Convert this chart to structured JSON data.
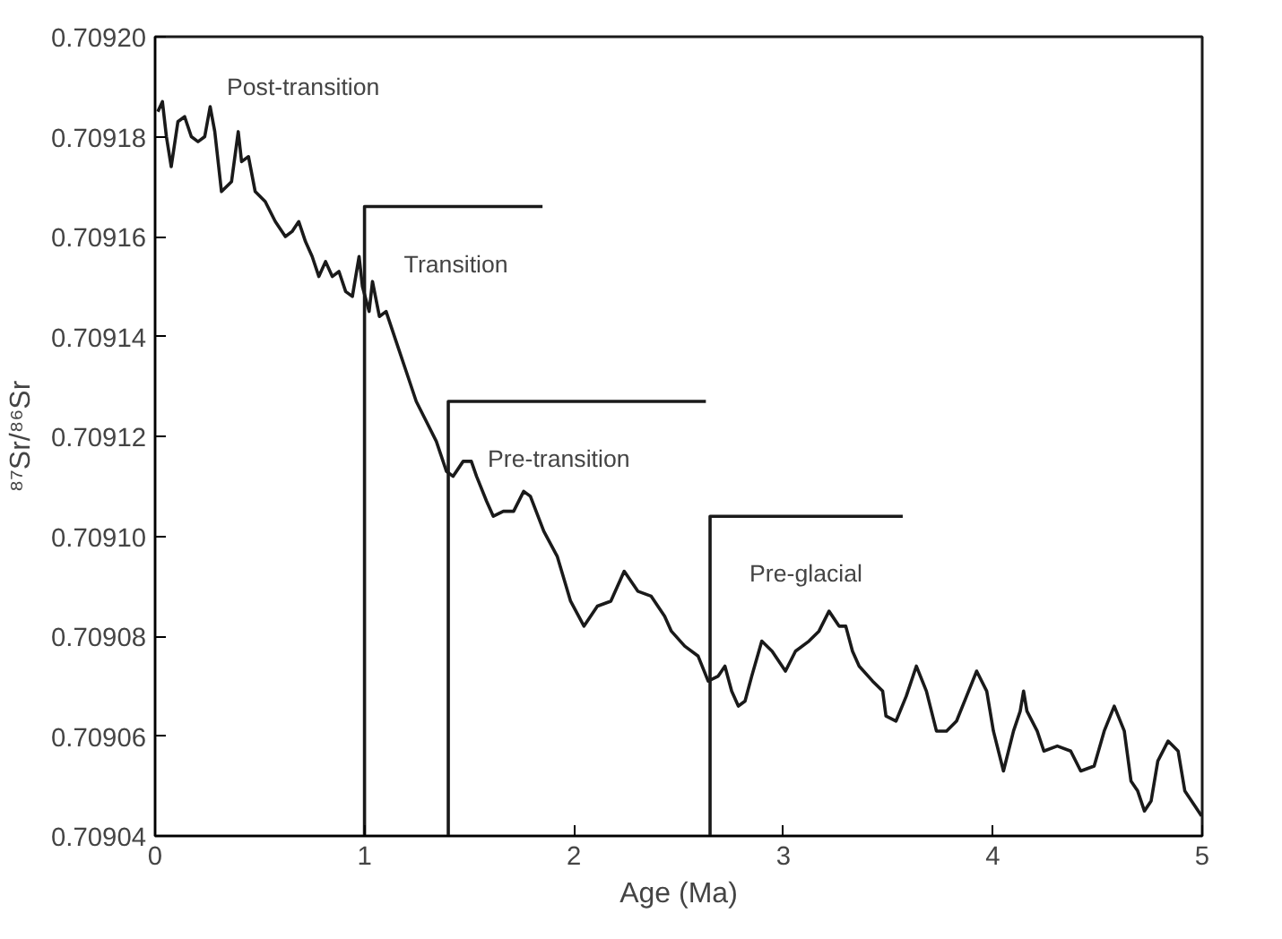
{
  "chart_data": {
    "type": "line",
    "xlabel": "Age (Ma)",
    "ylabel": "⁸⁷Sr/⁸⁶Sr",
    "xlim": [
      0,
      5
    ],
    "xticks": [
      0,
      1,
      2,
      3,
      4,
      5
    ],
    "ylim": [
      0.70904,
      0.7092
    ],
    "yticks": [
      {
        "value": 0.70904,
        "label": "0.70904"
      },
      {
        "value": 0.70906,
        "label": "0.70906"
      },
      {
        "value": 0.70908,
        "label": "0.70908"
      },
      {
        "value": 0.7091,
        "label": "0.70910"
      },
      {
        "value": 0.70912,
        "label": "0.70912"
      },
      {
        "value": 0.70914,
        "label": "0.70914"
      },
      {
        "value": 0.70916,
        "label": "0.70916"
      },
      {
        "value": 0.70918,
        "label": "0.70918"
      },
      {
        "value": 0.7092,
        "label": "0.70920"
      }
    ],
    "grid": false,
    "marker": "none",
    "line_style": "solid",
    "series": [
      {
        "color": "#1a1a1a",
        "x": [
          0.013,
          0.035,
          0.054,
          0.077,
          0.109,
          0.141,
          0.173,
          0.205,
          0.237,
          0.263,
          0.285,
          0.317,
          0.365,
          0.397,
          0.413,
          0.446,
          0.478,
          0.526,
          0.574,
          0.622,
          0.654,
          0.686,
          0.718,
          0.75,
          0.782,
          0.814,
          0.846,
          0.878,
          0.91,
          0.942,
          0.974,
          0.99,
          1.022,
          1.038,
          1.071,
          1.103,
          1.151,
          1.199,
          1.247,
          1.295,
          1.343,
          1.391,
          1.423,
          1.471,
          1.51,
          1.535,
          1.583,
          1.615,
          1.663,
          1.712,
          1.76,
          1.792,
          1.856,
          1.92,
          1.984,
          2.048,
          2.112,
          2.176,
          2.24,
          2.305,
          2.369,
          2.433,
          2.465,
          2.529,
          2.593,
          2.641,
          2.689,
          2.721,
          2.753,
          2.785,
          2.817,
          2.849,
          2.897,
          2.946,
          3.01,
          3.058,
          3.122,
          3.17,
          3.218,
          3.266,
          3.298,
          3.33,
          3.362,
          3.426,
          3.474,
          3.49,
          3.538,
          3.587,
          3.635,
          3.683,
          3.731,
          3.779,
          3.827,
          3.875,
          3.923,
          3.971,
          4.003,
          4.051,
          4.099,
          4.131,
          4.147,
          4.163,
          4.212,
          4.244,
          4.308,
          4.372,
          4.42,
          4.484,
          4.532,
          4.58,
          4.628,
          4.66,
          4.692,
          4.724,
          4.756,
          4.788,
          4.837,
          4.885,
          4.917,
          4.965,
          4.997
        ],
        "values": [
          0.709185,
          0.709187,
          0.70918,
          0.709174,
          0.709183,
          0.709184,
          0.70918,
          0.709179,
          0.70918,
          0.709186,
          0.709181,
          0.709169,
          0.709171,
          0.709181,
          0.709175,
          0.709176,
          0.709169,
          0.709167,
          0.709163,
          0.70916,
          0.709161,
          0.709163,
          0.709159,
          0.709156,
          0.709152,
          0.709155,
          0.709152,
          0.709153,
          0.709149,
          0.709148,
          0.709156,
          0.70915,
          0.709145,
          0.709151,
          0.709144,
          0.709145,
          0.709139,
          0.709133,
          0.709127,
          0.709123,
          0.709119,
          0.709113,
          0.709112,
          0.709115,
          0.709115,
          0.709112,
          0.709107,
          0.709104,
          0.709105,
          0.709105,
          0.709109,
          0.709108,
          0.709101,
          0.709096,
          0.709087,
          0.709082,
          0.709086,
          0.709087,
          0.709093,
          0.709089,
          0.709088,
          0.709084,
          0.709081,
          0.709078,
          0.709076,
          0.709071,
          0.709072,
          0.709074,
          0.709069,
          0.709066,
          0.709067,
          0.709072,
          0.709079,
          0.709077,
          0.709073,
          0.709077,
          0.709079,
          0.709081,
          0.709085,
          0.709082,
          0.709082,
          0.709077,
          0.709074,
          0.709071,
          0.709069,
          0.709064,
          0.709063,
          0.709068,
          0.709074,
          0.709069,
          0.709061,
          0.709061,
          0.709063,
          0.709068,
          0.709073,
          0.709069,
          0.709061,
          0.709053,
          0.709061,
          0.709065,
          0.709069,
          0.709065,
          0.709061,
          0.709057,
          0.709058,
          0.709057,
          0.709053,
          0.709054,
          0.709061,
          0.709066,
          0.709061,
          0.709051,
          0.709049,
          0.709045,
          0.709047,
          0.709055,
          0.709059,
          0.709057,
          0.709049,
          0.709046,
          0.709044
        ]
      },
      {
        "color": "#1a1a1a",
        "x": [
          1.0,
          1.0,
          1.85
        ],
        "values": [
          0.70904,
          0.709166,
          0.709166
        ]
      },
      {
        "color": "#1a1a1a",
        "x": [
          1.4,
          1.4,
          2.63
        ],
        "values": [
          0.70904,
          0.709127,
          0.709127
        ]
      },
      {
        "color": "#1a1a1a",
        "x": [
          2.65,
          2.65,
          3.57
        ],
        "values": [
          0.70904,
          0.709104,
          0.709104
        ]
      }
    ],
    "annotations": [
      "Post-transition",
      "Transition",
      "Pre-transition",
      "Pre-glacial"
    ]
  }
}
